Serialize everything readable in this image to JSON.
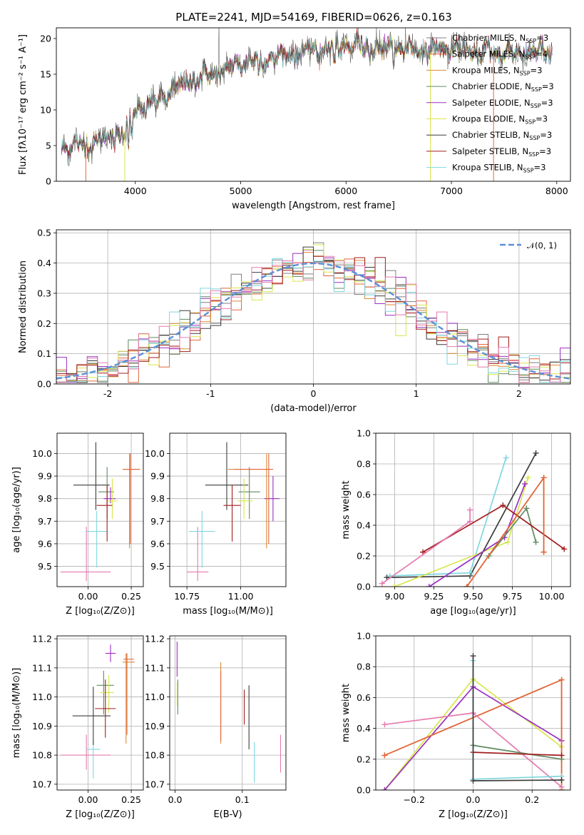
{
  "title": "PLATE=2241, MJD=54169, FIBERID=0626, z=0.163",
  "colors": {
    "Chabrier MILES": "#7f7f7f",
    "Salpeter MILES": "#e4653d",
    "Kroupa MILES": "#d98b32",
    "Chabrier ELODIE": "#5f8a61",
    "Salpeter ELODIE": "#9b2fc0",
    "Kroupa ELODIE": "#d8e64a",
    "Chabrier STELIB": "#3c3c3c",
    "Salpeter STELIB": "#a11c1c",
    "Kroupa STELIB": "#7fd6df",
    "extra": "#e57aae",
    "normal": "#5b8fd6"
  },
  "chart_data": [
    {
      "id": "spectrum",
      "type": "line",
      "xlabel": "wavelength [Angstrom, rest frame]",
      "ylabel": "Flux [fλ10⁻¹⁷ erg cm⁻² s⁻¹ A⁻¹]",
      "xlim": [
        3250,
        8130
      ],
      "ylim": [
        0,
        21.5
      ],
      "xticks": [
        4000,
        5000,
        6000,
        7000,
        8000
      ],
      "yticks": [
        0,
        5,
        10,
        15,
        20
      ],
      "legend_position": "upper right",
      "legend": [
        {
          "base": "Chabrier MILES, N",
          "sub": "SSP",
          "tail": "=3"
        },
        {
          "base": "Salpeter MILES, N",
          "sub": "SSP",
          "tail": "=4"
        },
        {
          "base": "Kroupa MILES, N",
          "sub": "SSP",
          "tail": "=3"
        },
        {
          "base": "Chabrier ELODIE, N",
          "sub": "SSP",
          "tail": "=3"
        },
        {
          "base": "Salpeter ELODIE, N",
          "sub": "SSP",
          "tail": "=3"
        },
        {
          "base": "Kroupa ELODIE, N",
          "sub": "SSP",
          "tail": "=3"
        },
        {
          "base": "Chabrier STELIB, N",
          "sub": "SSP",
          "tail": "=3"
        },
        {
          "base": "Salpeter STELIB, N",
          "sub": "SSP",
          "tail": "=3"
        },
        {
          "base": "Kroupa STELIB, N",
          "sub": "SSP",
          "tail": "=3"
        }
      ],
      "continuum": {
        "x": [
          3300,
          3500,
          3700,
          3900,
          4000,
          4200,
          4400,
          4600,
          4800,
          5000,
          5200,
          5400,
          5600,
          5800,
          6000,
          6200,
          6400,
          6600,
          6800,
          7000,
          7200,
          7400,
          7600,
          7800,
          7960
        ],
        "y": [
          4.8,
          5.0,
          5.8,
          7.0,
          10.0,
          11.2,
          13.2,
          14.6,
          15.2,
          16.6,
          17.0,
          17.6,
          18.1,
          18.6,
          18.9,
          19.0,
          18.5,
          18.6,
          18.4,
          18.6,
          18.1,
          18.2,
          17.9,
          18.1,
          17.9
        ]
      }
    },
    {
      "id": "residuals",
      "type": "step",
      "xlabel": "(data-model)/error",
      "ylabel": "Normed distribution",
      "xlim": [
        -2.5,
        2.5
      ],
      "ylim": [
        0,
        0.51
      ],
      "xticks": [
        -2,
        -1,
        0,
        1,
        2
      ],
      "yticks": [
        0.0,
        0.1,
        0.2,
        0.3,
        0.4,
        0.5
      ],
      "grid": true,
      "legend_label": "𝒩(0, 1)",
      "legend_position": "upper right",
      "bin_width": 0.1
    },
    {
      "id": "age_vs_Z",
      "type": "errorbar",
      "xlabel": "Z [log₁₀(Z/Z⊙)]",
      "ylabel": "age  [log₁₀(age/yr)]",
      "xlim": [
        -0.18,
        0.32
      ],
      "ylim": [
        9.41,
        10.09
      ],
      "xticks": [
        0.0,
        0.25
      ],
      "xtick_labels": [
        "0.00",
        "0.25"
      ],
      "yticks": [
        9.5,
        9.6,
        9.7,
        9.8,
        9.9,
        10.0
      ],
      "grid": true,
      "points": [
        {
          "model": "extra",
          "x": -0.01,
          "y": 9.475,
          "xerr": [
            0.15,
            0.14
          ],
          "yerr": [
            0.04,
            0.2
          ]
        },
        {
          "model": "Kroupa STELIB",
          "x": 0.05,
          "y": 9.655,
          "xerr": [
            0.06,
            0.06
          ],
          "yerr": [
            0.16,
            0.09
          ]
        },
        {
          "model": "Chabrier STELIB",
          "x": 0.045,
          "y": 9.86,
          "xerr": [
            0.13,
            0.08
          ],
          "yerr": [
            0.11,
            0.19
          ]
        },
        {
          "model": "Chabrier ELODIE",
          "x": 0.11,
          "y": 9.83,
          "xerr": [
            0.05,
            0.04
          ],
          "yerr": [
            0.12,
            0.11
          ]
        },
        {
          "model": "Salpeter ELODIE",
          "x": 0.13,
          "y": 9.8,
          "xerr": [
            0.04,
            0.03
          ],
          "yerr": [
            0.02,
            0.05
          ]
        },
        {
          "model": "Kroupa ELODIE",
          "x": 0.14,
          "y": 9.79,
          "xerr": [
            0.03,
            0.03
          ],
          "yerr": [
            0.08,
            0.1
          ]
        },
        {
          "model": "Salpeter STELIB",
          "x": 0.11,
          "y": 9.77,
          "xerr": [
            0.06,
            0.03
          ],
          "yerr": [
            0.16,
            0.09
          ]
        },
        {
          "model": "Kroupa MILES",
          "x": 0.24,
          "y": 9.93,
          "xerr": [
            0.04,
            0.06
          ],
          "yerr": [
            0.35,
            0.07
          ]
        },
        {
          "model": "Salpeter MILES",
          "x": 0.245,
          "y": 9.93,
          "xerr": [
            0.04,
            0.055
          ],
          "yerr": [
            0.33,
            0.07
          ]
        }
      ]
    },
    {
      "id": "age_vs_mass",
      "type": "errorbar",
      "xlabel": "mass [log₁₀(M/M⊙)]",
      "xlim": [
        10.67,
        11.21
      ],
      "ylim": [
        9.41,
        10.09
      ],
      "xticks": [
        10.75,
        11.0
      ],
      "xtick_labels": [
        "10.75",
        "11.00"
      ],
      "yticks": [
        9.5,
        9.6,
        9.7,
        9.8,
        9.9,
        10.0
      ],
      "grid": true,
      "points": [
        {
          "model": "extra",
          "x": 10.8,
          "y": 9.475,
          "xerr": [
            0.05,
            0.05
          ],
          "yerr": [
            0.04,
            0.2
          ]
        },
        {
          "model": "Kroupa STELIB",
          "x": 10.82,
          "y": 9.655,
          "xerr": [
            0.06,
            0.06
          ],
          "yerr": [
            0.16,
            0.09
          ]
        },
        {
          "model": "Chabrier STELIB",
          "x": 10.935,
          "y": 9.86,
          "xerr": [
            0.1,
            0.1
          ],
          "yerr": [
            0.11,
            0.19
          ]
        },
        {
          "model": "Chabrier ELODIE",
          "x": 11.04,
          "y": 9.83,
          "xerr": [
            0.05,
            0.05
          ],
          "yerr": [
            0.12,
            0.11
          ]
        },
        {
          "model": "Salpeter ELODIE",
          "x": 11.15,
          "y": 9.8,
          "xerr": [
            0.04,
            0.03
          ],
          "yerr": [
            0.1,
            0.1
          ]
        },
        {
          "model": "Kroupa ELODIE",
          "x": 11.015,
          "y": 9.79,
          "xerr": [
            0.03,
            0.04
          ],
          "yerr": [
            0.08,
            0.1
          ]
        },
        {
          "model": "Salpeter STELIB",
          "x": 10.96,
          "y": 9.77,
          "xerr": [
            0.04,
            0.04
          ],
          "yerr": [
            0.16,
            0.09
          ]
        },
        {
          "model": "Kroupa MILES",
          "x": 11.12,
          "y": 9.93,
          "xerr": [
            0.18,
            0.03
          ],
          "yerr": [
            0.35,
            0.07
          ]
        },
        {
          "model": "Salpeter MILES",
          "x": 11.13,
          "y": 9.93,
          "xerr": [
            0.16,
            0.02
          ],
          "yerr": [
            0.33,
            0.07
          ]
        }
      ]
    },
    {
      "id": "massweight_vs_age",
      "type": "line",
      "xlabel": "age  [log₁₀(age/yr)]",
      "ylabel": "mass weight",
      "xlim": [
        8.88,
        10.12
      ],
      "ylim": [
        0,
        1.0
      ],
      "xticks": [
        9.0,
        9.25,
        9.5,
        9.75,
        10.0
      ],
      "xtick_labels": [
        "9.00",
        "9.25",
        "9.50",
        "9.75",
        "10.00"
      ],
      "yticks": [
        0.0,
        0.2,
        0.4,
        0.6,
        0.8,
        1.0
      ],
      "grid": true,
      "series": [
        {
          "model": "Chabrier STELIB",
          "x": [
            8.95,
            9.48,
            9.9
          ],
          "y": [
            0.06,
            0.07,
            0.87
          ]
        },
        {
          "model": "Kroupa STELIB",
          "x": [
            8.97,
            9.48,
            9.71
          ],
          "y": [
            0.07,
            0.09,
            0.84
          ]
        },
        {
          "model": "Kroupa ELODIE",
          "x": [
            9.0,
            9.72,
            9.85
          ],
          "y": [
            0.0,
            0.29,
            0.71
          ]
        },
        {
          "model": "Salpeter ELODIE",
          "x": [
            9.22,
            9.7,
            9.83
          ],
          "y": [
            0.0,
            0.32,
            0.67
          ]
        },
        {
          "model": "Chabrier ELODIE",
          "x": [
            9.6,
            9.84,
            9.9
          ],
          "y": [
            0.2,
            0.51,
            0.29
          ]
        },
        {
          "model": "Salpeter STELIB",
          "x": [
            9.18,
            9.69,
            10.08
          ],
          "y": [
            0.225,
            0.53,
            0.245
          ]
        },
        {
          "model": "Kroupa MILES",
          "x": [
            9.46,
            9.95,
            9.95
          ],
          "y": [
            0.0,
            0.71,
            0.225
          ]
        },
        {
          "model": "Salpeter MILES",
          "x": [
            9.46,
            9.95,
            9.95
          ],
          "y": [
            0.0,
            0.71,
            0.225
          ]
        },
        {
          "model": "extra",
          "x": [
            8.92,
            9.48,
            9.48
          ],
          "y": [
            0.02,
            0.425,
            0.5
          ]
        }
      ]
    },
    {
      "id": "mass_vs_Z",
      "type": "errorbar",
      "xlabel": "Z [log₁₀(Z/Z⊙)]",
      "ylabel": "mass [log₁₀(M/M⊙)]",
      "xlim": [
        -0.18,
        0.32
      ],
      "ylim": [
        10.68,
        11.21
      ],
      "xticks": [
        0.0,
        0.25
      ],
      "xtick_labels": [
        "0.00",
        "0.25"
      ],
      "yticks": [
        10.7,
        10.8,
        10.9,
        11.0,
        11.1,
        11.2
      ],
      "grid": true,
      "points": [
        {
          "model": "extra",
          "x": -0.01,
          "y": 10.8,
          "xerr": [
            0.15,
            0.14
          ],
          "yerr": [
            0.05,
            0.07
          ]
        },
        {
          "model": "Kroupa STELIB",
          "x": 0.03,
          "y": 10.82,
          "xerr": [
            0.04,
            0.04
          ],
          "yerr": [
            0.1,
            0.03
          ]
        },
        {
          "model": "Chabrier STELIB",
          "x": 0.03,
          "y": 10.935,
          "xerr": [
            0.12,
            0.1
          ],
          "yerr": [
            0.1,
            0.1
          ]
        },
        {
          "model": "Chabrier ELODIE",
          "x": 0.09,
          "y": 11.04,
          "xerr": [
            0.04,
            0.06
          ],
          "yerr": [
            0.1,
            0.05
          ]
        },
        {
          "model": "Salpeter ELODIE",
          "x": 0.13,
          "y": 11.15,
          "xerr": [
            0.03,
            0.03
          ],
          "yerr": [
            0.03,
            0.03
          ]
        },
        {
          "model": "Kroupa ELODIE",
          "x": 0.12,
          "y": 11.015,
          "xerr": [
            0.05,
            0.03
          ],
          "yerr": [
            0.07,
            0.06
          ]
        },
        {
          "model": "Salpeter STELIB",
          "x": 0.1,
          "y": 10.96,
          "xerr": [
            0.06,
            0.06
          ],
          "yerr": [
            0.1,
            0.1
          ]
        },
        {
          "model": "Kroupa MILES",
          "x": 0.22,
          "y": 11.12,
          "xerr": [
            0.02,
            0.05
          ],
          "yerr": [
            0.28,
            0.03
          ]
        },
        {
          "model": "Salpeter MILES",
          "x": 0.225,
          "y": 11.13,
          "xerr": [
            0.02,
            0.04
          ],
          "yerr": [
            0.26,
            0.02
          ]
        }
      ]
    },
    {
      "id": "mass_vs_EBV",
      "type": "errorbar",
      "xlabel": "E(B-V)",
      "xlim": [
        -0.008,
        0.165
      ],
      "ylim": [
        10.68,
        11.21
      ],
      "xticks": [
        0.0,
        0.1
      ],
      "xtick_labels": [
        "0.0",
        "0.1"
      ],
      "yticks": [
        10.7,
        10.8,
        10.9,
        11.0,
        11.1,
        11.2
      ],
      "grid": true,
      "points": [
        {
          "model": "Salpeter ELODIE",
          "x": 0.003,
          "y": 11.12,
          "xerr": [
            0,
            0
          ],
          "yerr": [
            0.05,
            0.07
          ]
        },
        {
          "model": "Chabrier ELODIE",
          "x": 0.004,
          "y": 11.0,
          "xerr": [
            0,
            0
          ],
          "yerr": [
            0.06,
            0.06
          ]
        },
        {
          "model": "Kroupa ELODIE",
          "x": 0.003,
          "y": 11.01,
          "xerr": [
            0,
            0
          ],
          "yerr": [
            0.04,
            0.04
          ]
        },
        {
          "model": "Kroupa MILES",
          "x": 0.068,
          "y": 10.98,
          "xerr": [
            0,
            0
          ],
          "yerr": [
            0.14,
            0.14
          ]
        },
        {
          "model": "Salpeter MILES",
          "x": 0.068,
          "y": 10.97,
          "xerr": [
            0,
            0
          ],
          "yerr": [
            0.12,
            0.12
          ]
        },
        {
          "model": "Salpeter STELIB",
          "x": 0.103,
          "y": 10.965,
          "xerr": [
            0,
            0
          ],
          "yerr": [
            0.06,
            0.06
          ]
        },
        {
          "model": "Chabrier STELIB",
          "x": 0.11,
          "y": 10.93,
          "xerr": [
            0,
            0
          ],
          "yerr": [
            0.11,
            0.11
          ]
        },
        {
          "model": "Kroupa STELIB",
          "x": 0.118,
          "y": 10.775,
          "xerr": [
            0,
            0
          ],
          "yerr": [
            0.07,
            0.07
          ]
        },
        {
          "model": "extra",
          "x": 0.157,
          "y": 10.805,
          "xerr": [
            0,
            0
          ],
          "yerr": [
            0.065,
            0.065
          ]
        }
      ]
    },
    {
      "id": "massweight_vs_Z",
      "type": "line",
      "xlabel": "Z [log₁₀(Z/Z⊙)]",
      "ylabel": "mass weight",
      "xlim": [
        -0.33,
        0.33
      ],
      "ylim": [
        0,
        1.0
      ],
      "xticks": [
        -0.2,
        0.0,
        0.2
      ],
      "xtick_labels": [
        "−0.2",
        "0.0",
        "0.2"
      ],
      "yticks": [
        0.0,
        0.2,
        0.4,
        0.6,
        0.8,
        1.0
      ],
      "grid": true,
      "series": [
        {
          "model": "Kroupa ELODIE",
          "x": [
            -0.3,
            0.0,
            0.3
          ],
          "y": [
            0.0,
            0.72,
            0.28
          ]
        },
        {
          "model": "Salpeter ELODIE",
          "x": [
            -0.3,
            0.0,
            0.3
          ],
          "y": [
            0.0,
            0.67,
            0.32
          ]
        },
        {
          "model": "Kroupa MILES",
          "x": [
            -0.3,
            0.3,
            0.3
          ],
          "y": [
            0.225,
            0.715,
            0.0
          ]
        },
        {
          "model": "Salpeter MILES",
          "x": [
            -0.3,
            0.3,
            0.3
          ],
          "y": [
            0.225,
            0.715,
            0.0
          ]
        },
        {
          "model": "extra",
          "x": [
            -0.3,
            0.0,
            0.3
          ],
          "y": [
            0.425,
            0.5,
            0.02
          ]
        },
        {
          "model": "Chabrier ELODIE",
          "x": [
            0.0,
            0.3
          ],
          "y": [
            0.29,
            0.2
          ]
        },
        {
          "model": "Salpeter STELIB",
          "x": [
            0.0,
            0.3
          ],
          "y": [
            0.245,
            0.225
          ]
        },
        {
          "model": "Kroupa STELIB",
          "x": [
            0.0,
            0.0,
            0.3
          ],
          "y": [
            0.84,
            0.07,
            0.09
          ]
        },
        {
          "model": "Chabrier STELIB",
          "x": [
            0.0,
            0.0,
            0.3
          ],
          "y": [
            0.87,
            0.06,
            0.065
          ]
        }
      ]
    }
  ]
}
